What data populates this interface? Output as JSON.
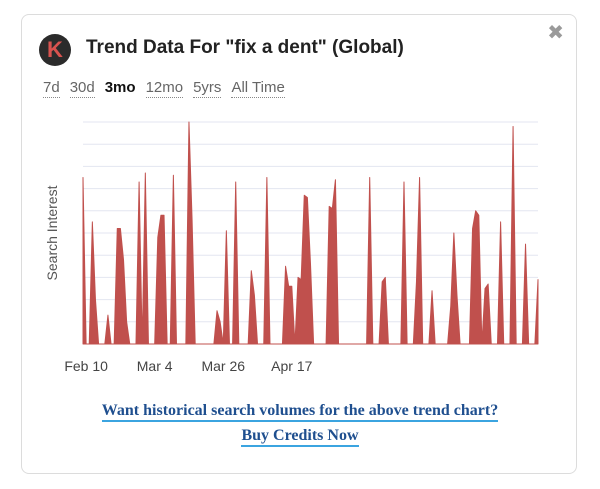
{
  "header": {
    "title": "Trend Data For \"fix a dent\" (Global)",
    "logo_letter": "K",
    "close_glyph": "✖"
  },
  "ranges": [
    {
      "label": "7d",
      "active": false
    },
    {
      "label": "30d",
      "active": false
    },
    {
      "label": "3mo",
      "active": true
    },
    {
      "label": "12mo",
      "active": false
    },
    {
      "label": "5yrs",
      "active": false
    },
    {
      "label": "All Time",
      "active": false
    }
  ],
  "cta": {
    "line1": "Want historical search volumes for the above trend chart?",
    "line2": "Buy Credits Now"
  },
  "colors": {
    "area": "#c0504d",
    "grid": "#e3e6f0",
    "link": "#1f4f8f",
    "underline": "#3ba4e0"
  },
  "chart_data": {
    "type": "area",
    "ylabel": "Search Interest",
    "xlabel": "",
    "x_ticks": [
      {
        "label": "Feb 10",
        "day": 1
      },
      {
        "label": "Mar 4",
        "day": 23
      },
      {
        "label": "Mar 26",
        "day": 45
      },
      {
        "label": "Apr 17",
        "day": 67
      }
    ],
    "ylim": [
      0,
      100
    ],
    "grid": true,
    "values": [
      75,
      0,
      0,
      55,
      20,
      0,
      0,
      0,
      13,
      0,
      0,
      52,
      52,
      38,
      10,
      0,
      0,
      0,
      73,
      0,
      77,
      0,
      0,
      0,
      48,
      58,
      58,
      0,
      0,
      76,
      0,
      0,
      0,
      0,
      100,
      56,
      0,
      0,
      0,
      0,
      0,
      0,
      0,
      15,
      10,
      0,
      51,
      0,
      0,
      73,
      0,
      0,
      0,
      0,
      33,
      22,
      0,
      0,
      0,
      75,
      0,
      0,
      0,
      0,
      0,
      35,
      26,
      26,
      0,
      30,
      29,
      67,
      66,
      36,
      0,
      0,
      0,
      0,
      0,
      62,
      61,
      74,
      0,
      0,
      0,
      0,
      0,
      0,
      0,
      0,
      0,
      0,
      75,
      0,
      0,
      0,
      28,
      30,
      0,
      0,
      0,
      0,
      0,
      73,
      0,
      0,
      0,
      28,
      75,
      0,
      0,
      0,
      24,
      0,
      0,
      0,
      0,
      0,
      17,
      50,
      22,
      0,
      0,
      0,
      0,
      52,
      60,
      58,
      0,
      25,
      27,
      0,
      0,
      0,
      55,
      0,
      0,
      0,
      98,
      0,
      0,
      0,
      45,
      0,
      0,
      0,
      29
    ]
  }
}
